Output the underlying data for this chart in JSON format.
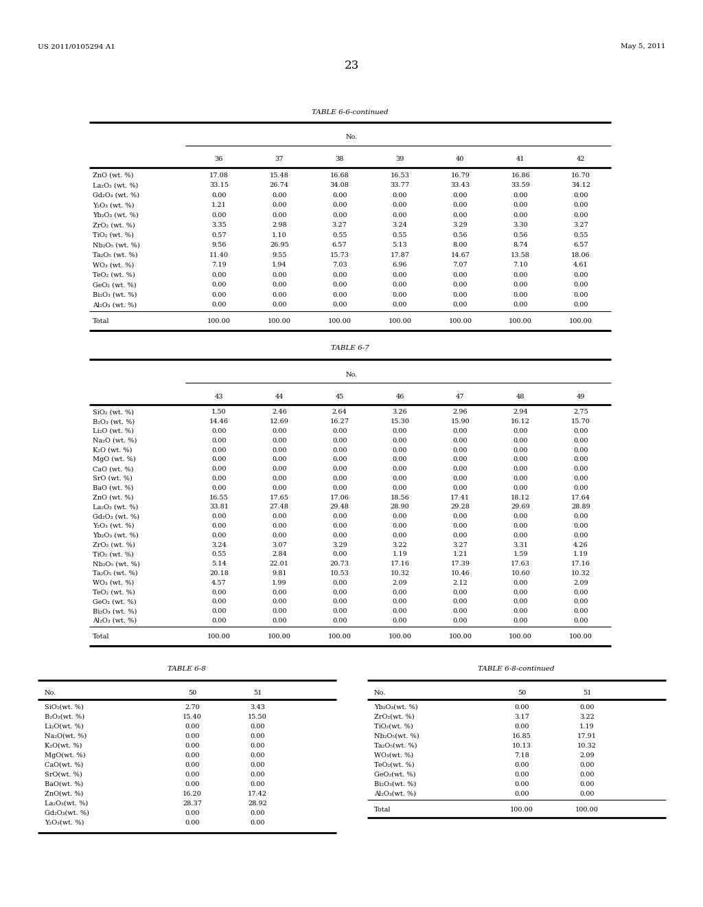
{
  "header_left": "US 2011/0105294 A1",
  "header_right": "May 5, 2011",
  "page_number": "23",
  "table1": {
    "title": "TABLE 6-6-continued",
    "no_label": "No.",
    "columns": [
      "36",
      "37",
      "38",
      "39",
      "40",
      "41",
      "42"
    ],
    "rows": [
      [
        "ZnO (wt. %)",
        "17.08",
        "15.48",
        "16.68",
        "16.53",
        "16.79",
        "16.86",
        "16.70"
      ],
      [
        "La₂O₃ (wt. %)",
        "33.15",
        "26.74",
        "34.08",
        "33.77",
        "33.43",
        "33.59",
        "34.12"
      ],
      [
        "Gd₂O₃ (wt. %)",
        "0.00",
        "0.00",
        "0.00",
        "0.00",
        "0.00",
        "0.00",
        "0.00"
      ],
      [
        "Y₂O₃ (wt. %)",
        "1.21",
        "0.00",
        "0.00",
        "0.00",
        "0.00",
        "0.00",
        "0.00"
      ],
      [
        "Yb₂O₃ (wt. %)",
        "0.00",
        "0.00",
        "0.00",
        "0.00",
        "0.00",
        "0.00",
        "0.00"
      ],
      [
        "ZrO₂ (wt. %)",
        "3.35",
        "2.98",
        "3.27",
        "3.24",
        "3.29",
        "3.30",
        "3.27"
      ],
      [
        "TiO₂ (wt. %)",
        "0.57",
        "1.10",
        "0.55",
        "0.55",
        "0.56",
        "0.56",
        "0.55"
      ],
      [
        "Nb₂O₅ (wt. %)",
        "9.56",
        "26.95",
        "6.57",
        "5.13",
        "8.00",
        "8.74",
        "6.57"
      ],
      [
        "Ta₂O₅ (wt. %)",
        "11.40",
        "9.55",
        "15.73",
        "17.87",
        "14.67",
        "13.58",
        "18.06"
      ],
      [
        "WO₃ (wt. %)",
        "7.19",
        "1.94",
        "7.03",
        "6.96",
        "7.07",
        "7.10",
        "4.61"
      ],
      [
        "TeO₂ (wt. %)",
        "0.00",
        "0.00",
        "0.00",
        "0.00",
        "0.00",
        "0.00",
        "0.00"
      ],
      [
        "GeO₂ (wt. %)",
        "0.00",
        "0.00",
        "0.00",
        "0.00",
        "0.00",
        "0.00",
        "0.00"
      ],
      [
        "Bi₂O₃ (wt. %)",
        "0.00",
        "0.00",
        "0.00",
        "0.00",
        "0.00",
        "0.00",
        "0.00"
      ],
      [
        "Al₂O₃ (wt. %)",
        "0.00",
        "0.00",
        "0.00",
        "0.00",
        "0.00",
        "0.00",
        "0.00"
      ]
    ],
    "total_row": [
      "Total",
      "100.00",
      "100.00",
      "100.00",
      "100.00",
      "100.00",
      "100.00",
      "100.00"
    ]
  },
  "table2": {
    "title": "TABLE 6-7",
    "no_label": "No.",
    "columns": [
      "43",
      "44",
      "45",
      "46",
      "47",
      "48",
      "49"
    ],
    "rows": [
      [
        "SiO₂ (wt. %)",
        "1.50",
        "2.46",
        "2.64",
        "3.26",
        "2.96",
        "2.94",
        "2.75"
      ],
      [
        "B₂O₃ (wt. %)",
        "14.46",
        "12.69",
        "16.27",
        "15.30",
        "15.90",
        "16.12",
        "15.70"
      ],
      [
        "Li₂O (wt. %)",
        "0.00",
        "0.00",
        "0.00",
        "0.00",
        "0.00",
        "0.00",
        "0.00"
      ],
      [
        "Na₂O (wt. %)",
        "0.00",
        "0.00",
        "0.00",
        "0.00",
        "0.00",
        "0.00",
        "0.00"
      ],
      [
        "K₂O (wt. %)",
        "0.00",
        "0.00",
        "0.00",
        "0.00",
        "0.00",
        "0.00",
        "0.00"
      ],
      [
        "MgO (wt. %)",
        "0.00",
        "0.00",
        "0.00",
        "0.00",
        "0.00",
        "0.00",
        "0.00"
      ],
      [
        "CaO (wt. %)",
        "0.00",
        "0.00",
        "0.00",
        "0.00",
        "0.00",
        "0.00",
        "0.00"
      ],
      [
        "SrO (wt. %)",
        "0.00",
        "0.00",
        "0.00",
        "0.00",
        "0.00",
        "0.00",
        "0.00"
      ],
      [
        "BaO (wt. %)",
        "0.00",
        "0.00",
        "0.00",
        "0.00",
        "0.00",
        "0.00",
        "0.00"
      ],
      [
        "ZnO (wt. %)",
        "16.55",
        "17.65",
        "17.06",
        "18.56",
        "17.41",
        "18.12",
        "17.64"
      ],
      [
        "La₂O₃ (wt. %)",
        "33.81",
        "27.48",
        "29.48",
        "28.90",
        "29.28",
        "29.69",
        "28.89"
      ],
      [
        "Gd₂O₃ (wt. %)",
        "0.00",
        "0.00",
        "0.00",
        "0.00",
        "0.00",
        "0.00",
        "0.00"
      ],
      [
        "Y₂O₃ (wt. %)",
        "0.00",
        "0.00",
        "0.00",
        "0.00",
        "0.00",
        "0.00",
        "0.00"
      ],
      [
        "Yb₂O₃ (wt. %)",
        "0.00",
        "0.00",
        "0.00",
        "0.00",
        "0.00",
        "0.00",
        "0.00"
      ],
      [
        "ZrO₂ (wt. %)",
        "3.24",
        "3.07",
        "3.29",
        "3.22",
        "3.27",
        "3.31",
        "4.26"
      ],
      [
        "TiO₂ (wt. %)",
        "0.55",
        "2.84",
        "0.00",
        "1.19",
        "1.21",
        "1.59",
        "1.19"
      ],
      [
        "Nb₂O₅ (wt. %)",
        "5.14",
        "22.01",
        "20.73",
        "17.16",
        "17.39",
        "17.63",
        "17.16"
      ],
      [
        "Ta₂O₅ (wt. %)",
        "20.18",
        "9.81",
        "10.53",
        "10.32",
        "10.46",
        "10.60",
        "10.32"
      ],
      [
        "WO₃ (wt. %)",
        "4.57",
        "1.99",
        "0.00",
        "2.09",
        "2.12",
        "0.00",
        "2.09"
      ],
      [
        "TeO₂ (wt. %)",
        "0.00",
        "0.00",
        "0.00",
        "0.00",
        "0.00",
        "0.00",
        "0.00"
      ],
      [
        "GeO₂ (wt. %)",
        "0.00",
        "0.00",
        "0.00",
        "0.00",
        "0.00",
        "0.00",
        "0.00"
      ],
      [
        "Bi₂O₃ (wt. %)",
        "0.00",
        "0.00",
        "0.00",
        "0.00",
        "0.00",
        "0.00",
        "0.00"
      ],
      [
        "Al₂O₃ (wt. %)",
        "0.00",
        "0.00",
        "0.00",
        "0.00",
        "0.00",
        "0.00",
        "0.00"
      ]
    ],
    "total_row": [
      "Total",
      "100.00",
      "100.00",
      "100.00",
      "100.00",
      "100.00",
      "100.00",
      "100.00"
    ]
  },
  "table3_left": {
    "title": "TABLE 6-8",
    "columns": [
      "No.",
      "50",
      "51"
    ],
    "rows": [
      [
        "SiO₂(wt. %)",
        "2.70",
        "3.43"
      ],
      [
        "B₂O₃(wt. %)",
        "15.40",
        "15.50"
      ],
      [
        "Li₂O(wt. %)",
        "0.00",
        "0.00"
      ],
      [
        "Na₂O(wt. %)",
        "0.00",
        "0.00"
      ],
      [
        "K₂O(wt. %)",
        "0.00",
        "0.00"
      ],
      [
        "MgO(wt. %)",
        "0.00",
        "0.00"
      ],
      [
        "CaO(wt. %)",
        "0.00",
        "0.00"
      ],
      [
        "SrO(wt. %)",
        "0.00",
        "0.00"
      ],
      [
        "BaO(wt. %)",
        "0.00",
        "0.00"
      ],
      [
        "ZnO(wt. %)",
        "16.20",
        "17.42"
      ],
      [
        "La₂O₃(wt. %)",
        "28.37",
        "28.92"
      ],
      [
        "Gd₂O₃(wt. %)",
        "0.00",
        "0.00"
      ],
      [
        "Y₂O₃(wt. %)",
        "0.00",
        "0.00"
      ]
    ]
  },
  "table3_right": {
    "title": "TABLE 6-8-continued",
    "columns": [
      "No.",
      "50",
      "51"
    ],
    "rows": [
      [
        "Yb₂O₃(wt. %)",
        "0.00",
        "0.00"
      ],
      [
        "ZrO₂(wt. %)",
        "3.17",
        "3.22"
      ],
      [
        "TiO₂(wt. %)",
        "0.00",
        "1.19"
      ],
      [
        "Nb₂O₅(wt. %)",
        "16.85",
        "17.91"
      ],
      [
        "Ta₂O₅(wt. %)",
        "10.13",
        "10.32"
      ],
      [
        "WO₃(wt. %)",
        "7.18",
        "2.09"
      ],
      [
        "TeO₂(wt. %)",
        "0.00",
        "0.00"
      ],
      [
        "GeO₂(wt. %)",
        "0.00",
        "0.00"
      ],
      [
        "Bi₂O₃(wt. %)",
        "0.00",
        "0.00"
      ],
      [
        "Al₂O₃(wt. %)",
        "0.00",
        "0.00"
      ]
    ],
    "total_row": [
      "Total",
      "100.00",
      "100.00"
    ]
  },
  "bg_color": "#ffffff",
  "text_color": "#000000",
  "font_size": 7.0,
  "font_family": "DejaVu Serif"
}
